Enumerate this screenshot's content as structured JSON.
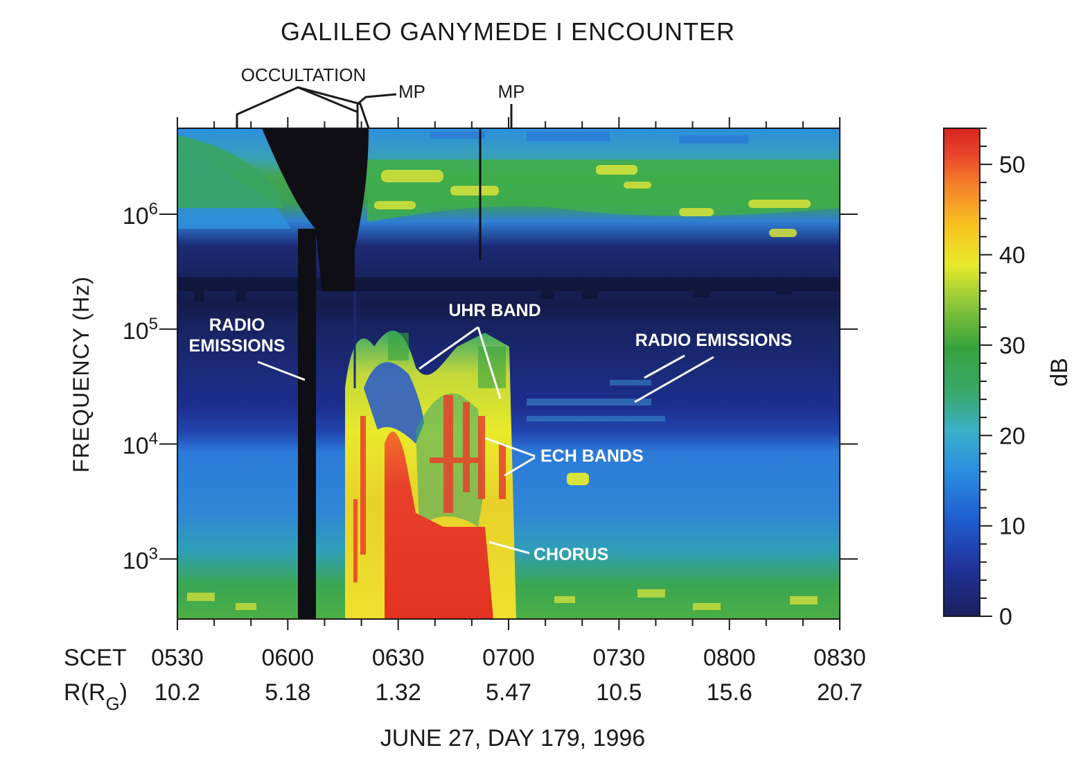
{
  "chart_data": {
    "type": "heatmap",
    "title": "GALILEO GANYMEDE I ENCOUNTER",
    "xlabel": "JUNE 27, DAY 179, 1996",
    "ylabel": "FREQUENCY (Hz)",
    "y_scale": "log",
    "x_row1_label": "SCET",
    "x_row1_ticks": [
      "0530",
      "0600",
      "0630",
      "0700",
      "0730",
      "0800",
      "0830"
    ],
    "x_row2_label_main": "R(R",
    "x_row2_label_sub": "G",
    "x_row2_label_end": ")",
    "x_row2_ticks": [
      "10.2",
      "5.18",
      "1.32",
      "5.47",
      "10.5",
      "15.6",
      "20.7"
    ],
    "y_ticks": [
      {
        "base": "10",
        "exp": "6",
        "value": 1000000
      },
      {
        "base": "10",
        "exp": "5",
        "value": 100000
      },
      {
        "base": "10",
        "exp": "4",
        "value": 10000
      },
      {
        "base": "10",
        "exp": "3",
        "value": 1000
      }
    ],
    "ylim": [
      300,
      5600000
    ],
    "colorbar": {
      "label": "dB",
      "ticks": [
        "0",
        "10",
        "20",
        "30",
        "40",
        "50"
      ],
      "tick_values": [
        0,
        10,
        20,
        30,
        40,
        50
      ],
      "range": [
        0,
        54
      ],
      "colors": [
        "#1b1f5c",
        "#20339a",
        "#1f5ed0",
        "#2b8fe0",
        "#3ab0c8",
        "#39a86a",
        "#36a23e",
        "#8cc63a",
        "#e8ea2a",
        "#f7c31f",
        "#f5852a",
        "#e8402a",
        "#d7261f"
      ]
    },
    "markers": [
      {
        "label": "OCCULTATION",
        "time": "0546-0618"
      },
      {
        "label": "MP",
        "time": "0620"
      },
      {
        "label": "MP",
        "time": "0656"
      }
    ],
    "annotations": [
      {
        "lines": [
          "RADIO",
          "EMISSIONS"
        ]
      },
      {
        "lines": [
          "UHR BAND"
        ]
      },
      {
        "lines": [
          "RADIO EMISSIONS"
        ]
      },
      {
        "lines": [
          "ECH BANDS"
        ]
      },
      {
        "lines": [
          "CHORUS"
        ]
      }
    ]
  }
}
